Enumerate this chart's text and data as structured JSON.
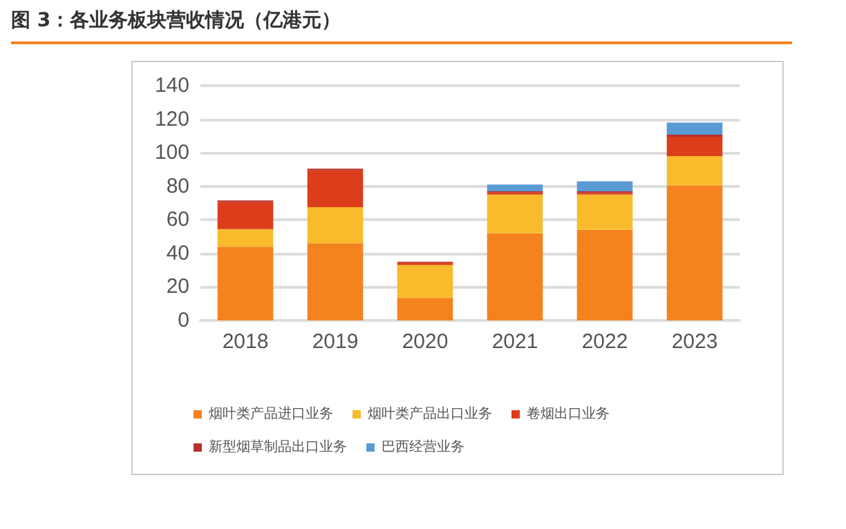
{
  "chart_data": {
    "type": "bar",
    "title": "图 3：各业务板块营收情况（亿港元）",
    "stacked": true,
    "categories": [
      "2018",
      "2019",
      "2020",
      "2021",
      "2022",
      "2023"
    ],
    "series": [
      {
        "name": "烟叶类产品进口业务",
        "color": "#f4831f",
        "values": [
          44,
          46,
          13.5,
          52,
          54,
          80.5
        ]
      },
      {
        "name": "烟叶类产品出口业务",
        "color": "#f9bb2b",
        "values": [
          10.5,
          21.5,
          19.5,
          23,
          21,
          17.5
        ]
      },
      {
        "name": "卷烟出口业务",
        "color": "#dc3d1b",
        "values": [
          16,
          22,
          1.5,
          1.3,
          1,
          11.5
        ]
      },
      {
        "name": "新型烟草制品出口业务",
        "color": "#b8302a",
        "values": [
          1,
          1,
          0.5,
          0.7,
          1,
          1.3
        ]
      },
      {
        "name": "巴西经营业务",
        "color": "#5b9bd5",
        "values": [
          null,
          null,
          null,
          4,
          6,
          7.2
        ]
      }
    ],
    "ylim": [
      0,
      140
    ],
    "yticks": [
      0,
      20,
      40,
      60,
      80,
      100,
      120,
      140
    ],
    "grid": "y",
    "legend": "bottom"
  }
}
